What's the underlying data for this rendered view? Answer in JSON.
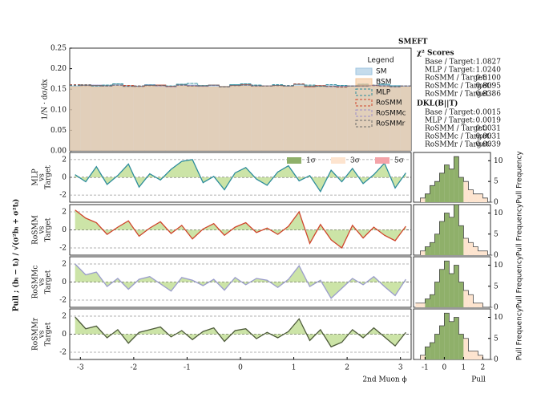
{
  "chart_data": [
    {
      "type": "histogram",
      "ylabel": "1/N · dσ/dx",
      "legend_title": "Legend",
      "bins": [
        -3.2,
        -3.0,
        -2.8,
        -2.6,
        -2.4,
        -2.2,
        -2.0,
        -1.8,
        -1.6,
        -1.4,
        -1.2,
        -1.0,
        -0.8,
        -0.6,
        -0.4,
        -0.2,
        0,
        0.2,
        0.4,
        0.6,
        0.8,
        1.0,
        1.2,
        1.4,
        1.6,
        1.8,
        2.0,
        2.2,
        2.4,
        2.6,
        2.8,
        3.0,
        3.2
      ],
      "xlim": [
        -3.2,
        3.2
      ],
      "ylim": [
        0,
        0.25
      ],
      "yticks": [
        {
          "value": 0,
          "label": "0.00"
        },
        0.05,
        {
          "value": 0.1,
          "label": "0.10"
        },
        0.15,
        {
          "value": 0.2,
          "label": "0.20"
        },
        0.25
      ],
      "series": [
        {
          "name": "SM",
          "color": "#9ec5e0",
          "fill": true,
          "values": [
            0.158,
            0.16,
            0.157,
            0.159,
            0.161,
            0.158,
            0.156,
            0.16,
            0.159,
            0.157,
            0.161,
            0.16,
            0.158,
            0.159,
            0.157,
            0.16,
            0.162,
            0.159,
            0.158,
            0.16,
            0.157,
            0.161,
            0.159,
            0.158,
            0.16,
            0.159,
            0.157,
            0.161,
            0.158,
            0.16,
            0.159,
            0.157
          ]
        },
        {
          "name": "BSM",
          "color": "#f3c69a",
          "fill": true,
          "values": [
            0.156,
            0.157,
            0.155,
            0.158,
            0.157,
            0.156,
            0.154,
            0.157,
            0.158,
            0.155,
            0.157,
            0.158,
            0.156,
            0.155,
            0.157,
            0.158,
            0.157,
            0.156,
            0.157,
            0.158,
            0.155,
            0.157,
            0.158,
            0.156,
            0.157,
            0.156,
            0.155,
            0.158,
            0.157,
            0.156,
            0.157,
            0.155
          ]
        },
        {
          "name": "MLP",
          "color": "#2c8c9c",
          "fill": false,
          "values": [
            0.159,
            0.161,
            0.158,
            0.16,
            0.163,
            0.159,
            0.157,
            0.161,
            0.16,
            0.158,
            0.162,
            0.164,
            0.159,
            0.16,
            0.156,
            0.161,
            0.163,
            0.16,
            0.158,
            0.161,
            0.159,
            0.162,
            0.16,
            0.157,
            0.161,
            0.159,
            0.158,
            0.162,
            0.159,
            0.162,
            0.158,
            0.158
          ]
        },
        {
          "name": "RoSMM",
          "color": "#d0452c",
          "fill": false,
          "values": [
            0.161,
            0.16,
            0.159,
            0.158,
            0.16,
            0.159,
            0.157,
            0.159,
            0.16,
            0.157,
            0.16,
            0.158,
            0.158,
            0.16,
            0.156,
            0.159,
            0.161,
            0.158,
            0.158,
            0.159,
            0.158,
            0.163,
            0.156,
            0.159,
            0.157,
            0.155,
            0.158,
            0.158,
            0.159,
            0.158,
            0.156,
            0.158
          ]
        },
        {
          "name": "RoSMMc",
          "color": "#9a8cc8",
          "fill": false,
          "values": [
            0.16,
            0.159,
            0.16,
            0.158,
            0.16,
            0.157,
            0.158,
            0.16,
            0.158,
            0.156,
            0.16,
            0.159,
            0.157,
            0.159,
            0.156,
            0.159,
            0.16,
            0.158,
            0.158,
            0.159,
            0.158,
            0.162,
            0.157,
            0.158,
            0.156,
            0.157,
            0.158,
            0.158,
            0.159,
            0.158,
            0.156,
            0.158
          ]
        },
        {
          "name": "RoSMMr",
          "color": "#6b6b6b",
          "fill": false,
          "values": [
            0.16,
            0.159,
            0.159,
            0.158,
            0.16,
            0.157,
            0.158,
            0.159,
            0.159,
            0.157,
            0.16,
            0.158,
            0.158,
            0.16,
            0.156,
            0.159,
            0.16,
            0.158,
            0.158,
            0.159,
            0.158,
            0.162,
            0.157,
            0.158,
            0.157,
            0.156,
            0.158,
            0.158,
            0.16,
            0.158,
            0.156,
            0.158
          ]
        }
      ]
    },
    {
      "type": "area",
      "ylabel": [
        "MLP",
        "vs",
        "Target"
      ],
      "color": "#2c8c9c",
      "fill_color": "#c3df98",
      "sigma_bands": [
        {
          "value": 1,
          "label": "1σ",
          "color": "#8fb06a"
        },
        {
          "value": 3,
          "label": "3σ",
          "color": "#fde4cf"
        },
        {
          "value": 5,
          "label": "5σ",
          "color": "#f4a3a8"
        }
      ],
      "xlim": [
        -3.2,
        3.2
      ],
      "ylim": [
        -2.8,
        2.8
      ],
      "yticks": [
        -2,
        0,
        2
      ],
      "x": [
        -3.1,
        -2.9,
        -2.7,
        -2.5,
        -2.3,
        -2.1,
        -1.9,
        -1.7,
        -1.5,
        -1.3,
        -1.1,
        -0.9,
        -0.7,
        -0.5,
        -0.3,
        -0.1,
        0.1,
        0.3,
        0.5,
        0.7,
        0.9,
        1.1,
        1.3,
        1.5,
        1.7,
        1.9,
        2.1,
        2.3,
        2.5,
        2.7,
        2.9,
        3.1
      ],
      "values": [
        0.3,
        -0.5,
        1.2,
        -0.8,
        0.2,
        1.5,
        -1.1,
        0.4,
        -0.3,
        0.9,
        1.8,
        2.0,
        -0.6,
        0.1,
        -1.4,
        0.5,
        1.1,
        -0.2,
        -0.9,
        0.6,
        1.3,
        -0.4,
        0.2,
        -1.6,
        0.8,
        -0.5,
        1.0,
        -0.7,
        0.3,
        1.6,
        -1.2,
        0.5
      ]
    },
    {
      "type": "area",
      "ylabel": [
        "RoSMM",
        "vs",
        "Target"
      ],
      "color": "#d0452c",
      "fill_color": "#c3df98",
      "xlim": [
        -3.2,
        3.2
      ],
      "ylim": [
        -2.8,
        2.8
      ],
      "yticks": [
        -2,
        0,
        2
      ],
      "x": [
        -3.1,
        -2.9,
        -2.7,
        -2.5,
        -2.3,
        -2.1,
        -1.9,
        -1.7,
        -1.5,
        -1.3,
        -1.1,
        -0.9,
        -0.7,
        -0.5,
        -0.3,
        -0.1,
        0.1,
        0.3,
        0.5,
        0.7,
        0.9,
        1.1,
        1.3,
        1.5,
        1.7,
        1.9,
        2.1,
        2.3,
        2.5,
        2.7,
        2.9,
        3.1
      ],
      "values": [
        2.2,
        1.3,
        0.8,
        -0.5,
        0.3,
        1.0,
        -0.7,
        0.2,
        0.9,
        -0.4,
        0.5,
        -1.0,
        0.1,
        0.7,
        -0.6,
        0.3,
        0.8,
        -0.3,
        0.2,
        -0.5,
        0.4,
        2.0,
        -1.5,
        0.6,
        -1.1,
        -2.0,
        0.5,
        -0.9,
        0.3,
        -0.6,
        -1.2,
        0.4
      ]
    },
    {
      "type": "area",
      "ylabel": [
        "RoSMMc",
        "vs",
        "Target"
      ],
      "color": "#9a9ccc",
      "fill_color": "#c3df98",
      "xlim": [
        -3.2,
        3.2
      ],
      "ylim": [
        -2.8,
        2.8
      ],
      "yticks": [
        -2,
        0,
        2
      ],
      "x": [
        -3.1,
        -2.9,
        -2.7,
        -2.5,
        -2.3,
        -2.1,
        -1.9,
        -1.7,
        -1.5,
        -1.3,
        -1.1,
        -0.9,
        -0.7,
        -0.5,
        -0.3,
        -0.1,
        0.1,
        0.3,
        0.5,
        0.7,
        0.9,
        1.1,
        1.3,
        1.5,
        1.7,
        1.9,
        2.1,
        2.3,
        2.5,
        2.7,
        2.9,
        3.1
      ],
      "values": [
        2.0,
        0.8,
        1.1,
        -0.5,
        0.4,
        -0.8,
        0.3,
        0.6,
        -0.2,
        -1.0,
        0.5,
        0.2,
        -0.4,
        0.3,
        -0.9,
        0.5,
        -0.3,
        0.4,
        0.2,
        -0.6,
        0.3,
        1.8,
        -0.5,
        0.2,
        -1.8,
        -0.7,
        0.4,
        -0.3,
        0.6,
        -0.5,
        -1.5,
        0.3
      ]
    },
    {
      "type": "area",
      "ylabel": [
        "RoSMMr",
        "vs",
        "Target"
      ],
      "color": "#4d5a3a",
      "fill_color": "#c3df98",
      "xlim": [
        -3.2,
        3.2
      ],
      "ylim": [
        -2.8,
        2.8
      ],
      "yticks": [
        -2,
        0,
        2
      ],
      "xticks": [
        -3,
        -2,
        -1,
        0,
        1,
        2,
        3
      ],
      "xlabel": "2nd Muon ϕ",
      "x": [
        -3.1,
        -2.9,
        -2.7,
        -2.5,
        -2.3,
        -2.1,
        -1.9,
        -1.7,
        -1.5,
        -1.3,
        -1.1,
        -0.9,
        -0.7,
        -0.5,
        -0.3,
        -0.1,
        0.1,
        0.3,
        0.5,
        0.7,
        0.9,
        1.1,
        1.3,
        1.5,
        1.7,
        1.9,
        2.1,
        2.3,
        2.5,
        2.7,
        2.9,
        3.1
      ],
      "values": [
        1.9,
        0.6,
        0.9,
        -0.4,
        0.5,
        -1.0,
        0.2,
        0.5,
        0.8,
        -0.3,
        0.4,
        -0.6,
        0.3,
        0.7,
        -0.8,
        0.4,
        0.6,
        -0.5,
        0.2,
        -0.4,
        0.3,
        1.7,
        -0.7,
        0.5,
        -1.4,
        -0.9,
        0.5,
        -0.4,
        0.7,
        -0.3,
        -1.3,
        0.2
      ]
    },
    {
      "type": "histogram",
      "ylabel": "Pull Frequency",
      "xlim": [
        -1.6,
        2.4
      ],
      "ylim": [
        0,
        12
      ],
      "yticks": [
        0,
        5,
        10
      ],
      "bins": [
        -1.5,
        -1.25,
        -1.0,
        -0.75,
        -0.5,
        -0.25,
        0,
        0.25,
        0.5,
        0.75,
        1.0,
        1.25,
        1.5,
        1.75,
        2.0,
        2.25,
        2.5
      ],
      "values": [
        0,
        1,
        2,
        4,
        5,
        7,
        9,
        8,
        11,
        6,
        5,
        3,
        2,
        2,
        1,
        0
      ]
    },
    {
      "type": "histogram",
      "ylabel": "Pull Frequency",
      "xlim": [
        -1.6,
        2.4
      ],
      "ylim": [
        0,
        12
      ],
      "yticks": [
        0,
        5,
        10
      ],
      "bins": [
        -1.5,
        -1.25,
        -1.0,
        -0.75,
        -0.5,
        -0.25,
        0,
        0.25,
        0.5,
        0.75,
        1.0,
        1.25,
        1.5,
        1.75,
        2.0,
        2.25,
        2.5
      ],
      "values": [
        0,
        1,
        2,
        3,
        5,
        8,
        10,
        9,
        12,
        7,
        4,
        3,
        2,
        1,
        1,
        0
      ]
    },
    {
      "type": "histogram",
      "ylabel": "Pull Frequency",
      "xlim": [
        -1.6,
        2.4
      ],
      "ylim": [
        0,
        12
      ],
      "yticks": [
        0,
        5,
        10
      ],
      "bins": [
        -1.5,
        -1.25,
        -1.0,
        -0.75,
        -0.5,
        -0.25,
        0,
        0.25,
        0.5,
        0.75,
        1.0,
        1.25,
        1.5,
        1.75,
        2.0,
        2.25,
        2.5
      ],
      "values": [
        1,
        1,
        2,
        3,
        6,
        9,
        11,
        8,
        10,
        6,
        4,
        3,
        1,
        1,
        0,
        0
      ]
    },
    {
      "type": "histogram",
      "ylabel": "Pull Frequency",
      "xlim": [
        -1.6,
        2.4
      ],
      "ylim": [
        0,
        12
      ],
      "yticks": [
        0,
        5,
        10
      ],
      "xticks": [
        -1,
        0,
        1,
        2
      ],
      "xlabel": "Pull",
      "bins": [
        -1.5,
        -1.25,
        -1.0,
        -0.75,
        -0.5,
        -0.25,
        0,
        0.25,
        0.5,
        0.75,
        1.0,
        1.25,
        1.5,
        1.75,
        2.0,
        2.25,
        2.5
      ],
      "values": [
        0,
        1,
        3,
        4,
        6,
        8,
        11,
        9,
        10,
        6,
        5,
        2,
        2,
        1,
        0,
        0
      ]
    }
  ],
  "pull_label": "Pull ; (bᵢ − tᵢ) / √(σ²bᵢ + σ²tᵢ)",
  "scores": {
    "title": "SMEFT",
    "sections": [
      {
        "heading": "χ² Scores",
        "rows": [
          [
            "Base / Target:",
            "1.0827"
          ],
          [
            "MLP / Target:",
            "1.0240"
          ],
          [
            "RoSMM / Target:",
            "0.8100"
          ],
          [
            "RoSMMc / Target:",
            "0.8095"
          ],
          [
            "RoSMMr / Target:",
            "0.8386"
          ]
        ]
      },
      {
        "heading": "DKL(B||T)",
        "rows": [
          [
            "Base / Target:",
            "0.0015"
          ],
          [
            "MLP / Target:",
            "0.0019"
          ],
          [
            "RoSMM / Target:",
            "0.0031"
          ],
          [
            "RoSMMc / Target:",
            "0.0031"
          ],
          [
            "RoSMMr / Target:",
            "0.0039"
          ]
        ]
      }
    ]
  }
}
